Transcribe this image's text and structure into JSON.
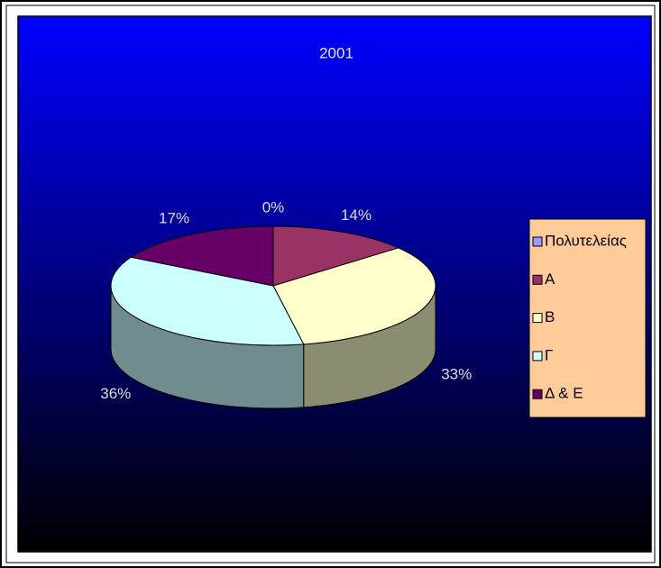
{
  "chart_data": {
    "type": "pie",
    "title": "2001",
    "categories": [
      "Πολυτελείας",
      "Α",
      "Β",
      "Γ",
      "Δ & Ε"
    ],
    "values": [
      0,
      14,
      33,
      36,
      17
    ],
    "value_labels": [
      "0%",
      "14%",
      "33%",
      "36%",
      "17%"
    ],
    "colors": [
      "#9999ff",
      "#993366",
      "#ffffcc",
      "#ccffff",
      "#660066"
    ],
    "three_d": true,
    "legend": "right"
  }
}
